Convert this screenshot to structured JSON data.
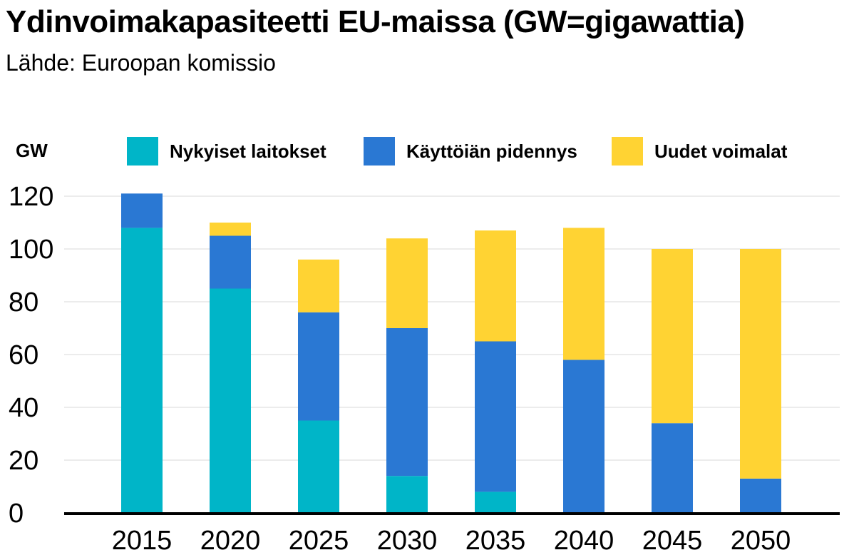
{
  "title": "Ydinvoimakapasiteetti EU-maissa (GW=gigawattia)",
  "subtitle": "Lähde: Euroopan komissio",
  "unit_label": "GW",
  "chart_data": {
    "type": "bar",
    "stacked": true,
    "categories": [
      "2015",
      "2020",
      "2025",
      "2030",
      "2035",
      "2040",
      "2045",
      "2050"
    ],
    "series": [
      {
        "name": "Nykyiset laitokset",
        "color": "#00b5c8",
        "values": [
          108,
          85,
          35,
          14,
          8,
          0,
          0,
          0
        ]
      },
      {
        "name": "Käyttöiän pidennys",
        "color": "#2a78d3",
        "values": [
          13,
          20,
          41,
          56,
          57,
          58,
          34,
          13
        ]
      },
      {
        "name": "Uudet voimalat",
        "color": "#ffd333",
        "values": [
          0,
          5,
          20,
          34,
          42,
          50,
          66,
          87
        ]
      }
    ],
    "ylim": [
      0,
      120
    ],
    "yticks": [
      "0",
      "20",
      "40",
      "60",
      "80",
      "100",
      "120"
    ],
    "grid": true,
    "legend_position": "top"
  }
}
